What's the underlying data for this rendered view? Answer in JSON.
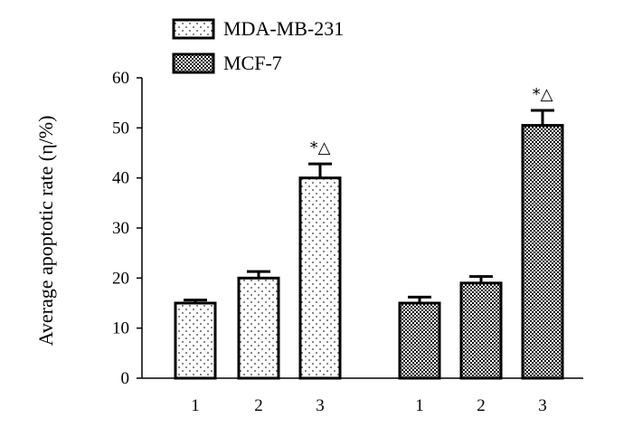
{
  "chart_data": {
    "type": "bar",
    "ylabel": "Average apoptotic rate (η/%)",
    "xlabel": "",
    "ylim": [
      0,
      60
    ],
    "yticks": [
      0,
      10,
      20,
      30,
      40,
      50,
      60
    ],
    "legend_position": "top-left",
    "groups": [
      {
        "name": "MDA-MB-231",
        "pattern": "sparse-dots",
        "categories": [
          "1",
          "2",
          "3"
        ],
        "values": [
          15,
          20,
          40
        ],
        "errors": [
          0.6,
          1.3,
          2.8
        ],
        "annotations": [
          "",
          "",
          "*△"
        ]
      },
      {
        "name": "MCF-7",
        "pattern": "dense-checker",
        "categories": [
          "1",
          "2",
          "3"
        ],
        "values": [
          15,
          19,
          50.5
        ],
        "errors": [
          1.2,
          1.3,
          3.0
        ],
        "annotations": [
          "",
          "",
          "*△"
        ]
      }
    ]
  }
}
